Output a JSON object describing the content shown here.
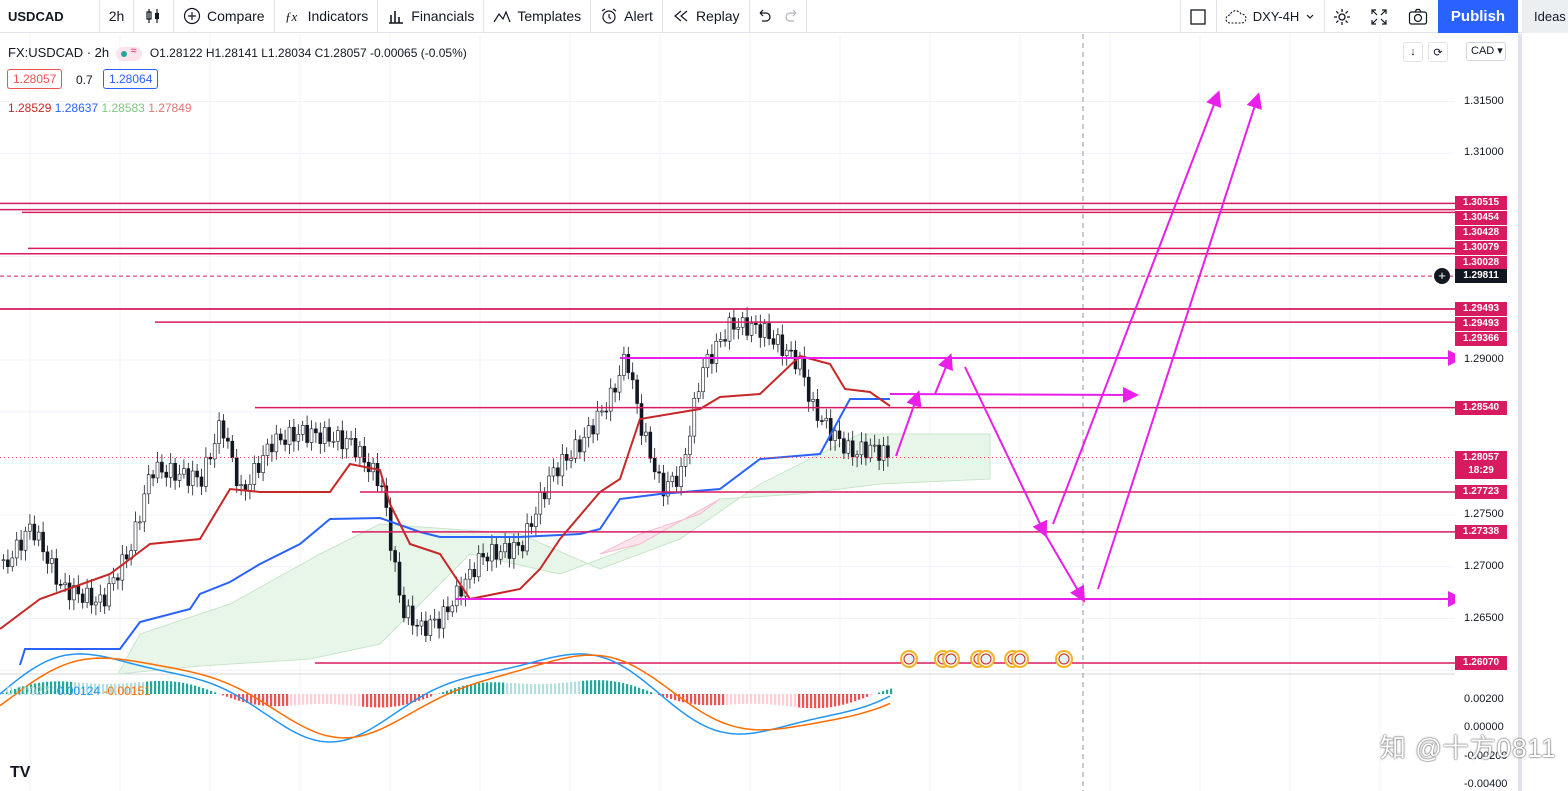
{
  "toolbar": {
    "symbol": "USDCAD",
    "interval": "2h",
    "compare": "Compare",
    "indicators": "Indicators",
    "financials": "Financials",
    "templates": "Templates",
    "alert": "Alert",
    "replay": "Replay",
    "layout_name": "DXY-4H",
    "publish": "Publish",
    "ideas": "Ideas"
  },
  "legend": {
    "title": "FX:USDCAD · 2h",
    "ohlc": "O1.28122  H1.28141  L1.28034  C1.28057  -0.00065 (-0.05%)",
    "sell_price": "1.28057",
    "spread": "0.7",
    "buy_price": "1.28064",
    "ichimoku": [
      "1.28529",
      "1.28637",
      "1.28583",
      "1.27849"
    ]
  },
  "price_scale": {
    "currency": "CAD",
    "ticks": [
      {
        "label": "1.31500",
        "price": 1.315
      },
      {
        "label": "1.31000",
        "price": 1.31
      },
      {
        "label": "1.29000",
        "price": 1.29
      },
      {
        "label": "1.27500",
        "price": 1.275
      },
      {
        "label": "1.27000",
        "price": 1.27
      },
      {
        "label": "1.26500",
        "price": 1.265
      }
    ],
    "labels": [
      {
        "text": "1.30515",
        "price": 1.30515
      },
      {
        "text": "1.30454",
        "price": 1.30454
      },
      {
        "text": "1.30428",
        "price": 1.30428
      },
      {
        "text": "1.30079",
        "price": 1.30079
      },
      {
        "text": "1.30028",
        "price": 1.30028
      },
      {
        "text": "1.29493",
        "price": 1.29493
      },
      {
        "text": "1.29493",
        "price": 1.29493
      },
      {
        "text": "1.29366",
        "price": 1.29366
      },
      {
        "text": "1.28540",
        "price": 1.2854
      },
      {
        "text": "1.27723",
        "price": 1.27723
      },
      {
        "text": "1.27338",
        "price": 1.27338
      },
      {
        "text": "1.26070",
        "price": 1.2607
      }
    ],
    "crosshair_label": "1.29811",
    "last_price": "1.28057",
    "countdown": "18:29"
  },
  "macd": {
    "values": [
      "0.00027",
      "-0.00124",
      "-0.00151"
    ],
    "ticks": [
      "0.00200",
      "0.00000",
      "-0.00200",
      "-0.00400"
    ]
  },
  "watermark": "知 @十方0811",
  "logo": "TV",
  "colors": {
    "level_line": "#d81b60",
    "arrow": "#e91ee8",
    "up_candle": "#26a69a",
    "down_candle": "#ef5350",
    "kijun": "#c62828",
    "tenkan": "#2962ff",
    "cloud": "#e8f5e9",
    "publish_bg": "#2962ff"
  }
}
